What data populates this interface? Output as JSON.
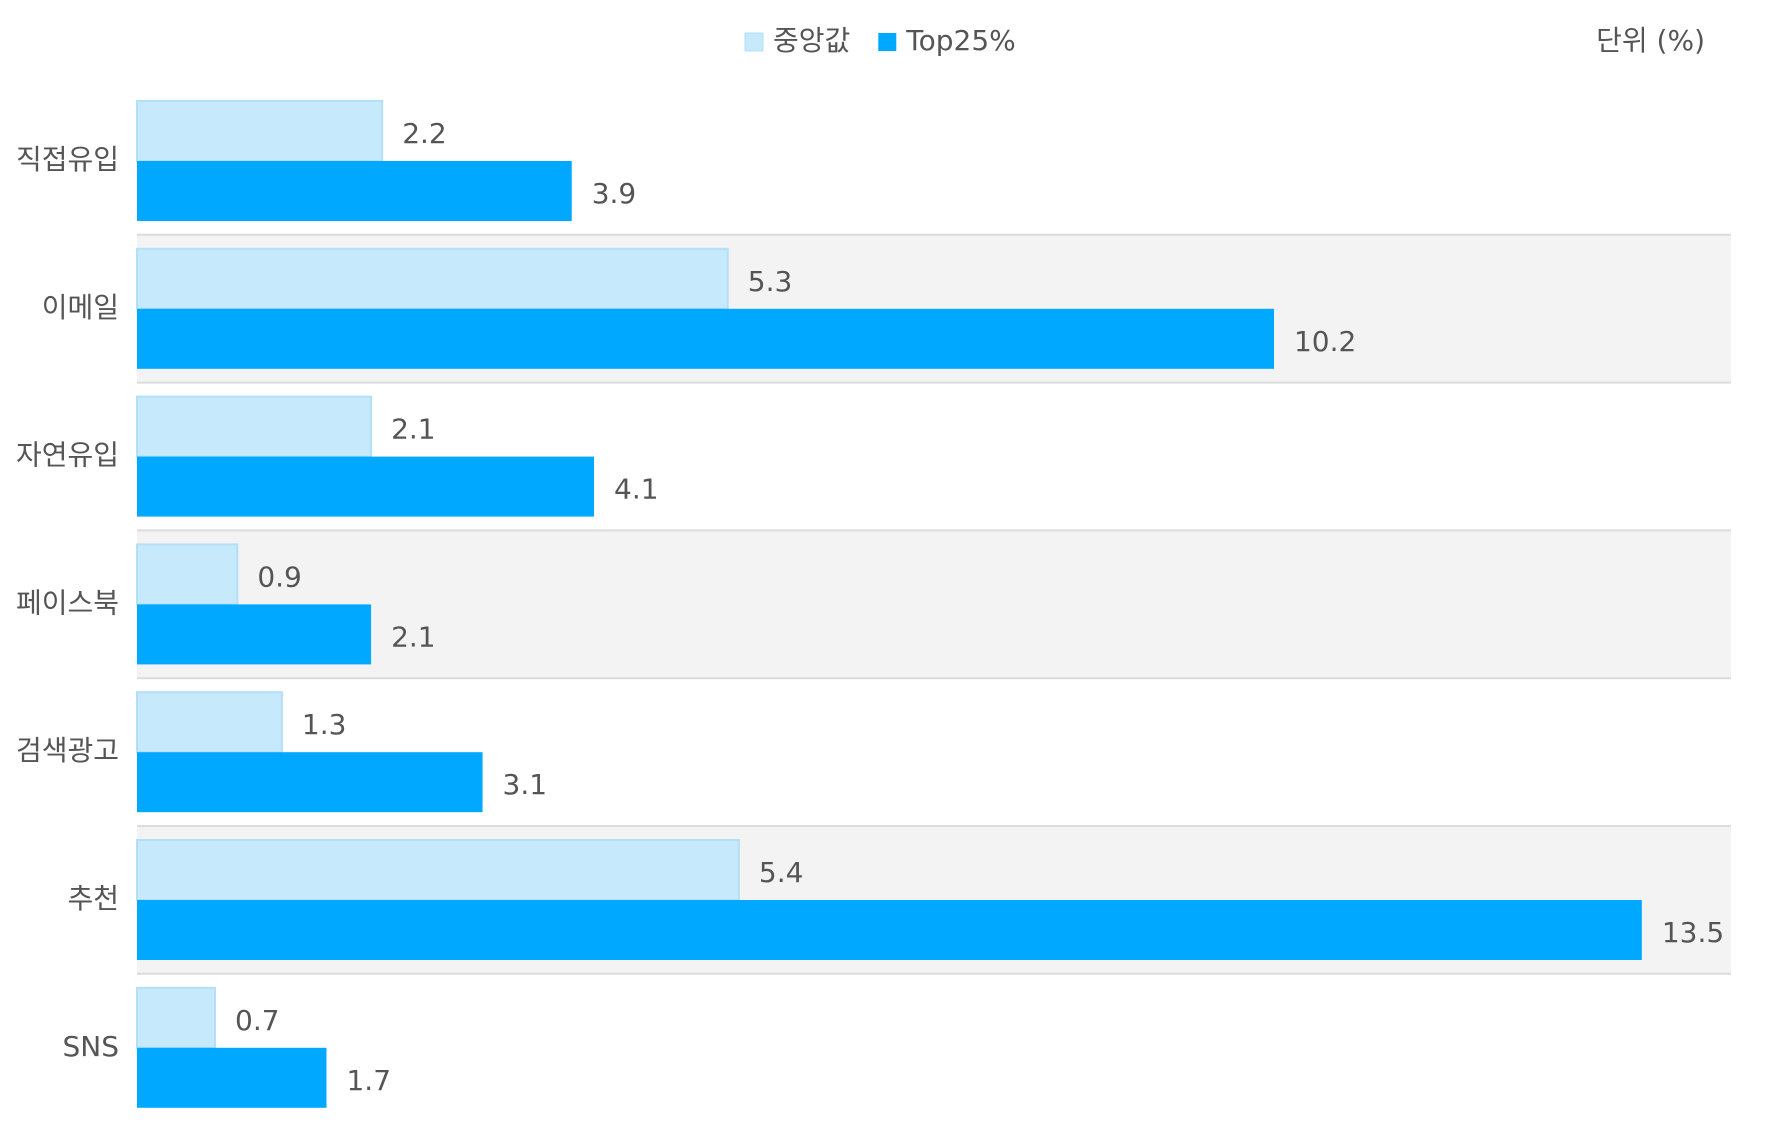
{
  "chart_data": {
    "type": "bar",
    "orientation": "horizontal",
    "unit_label": "단위 (%)",
    "categories": [
      "직접유입",
      "이메일",
      "자연유입",
      "페이스북",
      "검색광고",
      "추천",
      "SNS"
    ],
    "series": [
      {
        "name": "중앙값",
        "color": "#c6e9fb",
        "values": [
          2.2,
          5.3,
          2.1,
          0.9,
          1.3,
          5.4,
          0.7
        ]
      },
      {
        "name": "Top25%",
        "color": "#00a8ff",
        "values": [
          3.9,
          10.2,
          4.1,
          2.1,
          3.1,
          13.5,
          1.7
        ]
      }
    ],
    "xlim": [
      0,
      14.3
    ]
  }
}
